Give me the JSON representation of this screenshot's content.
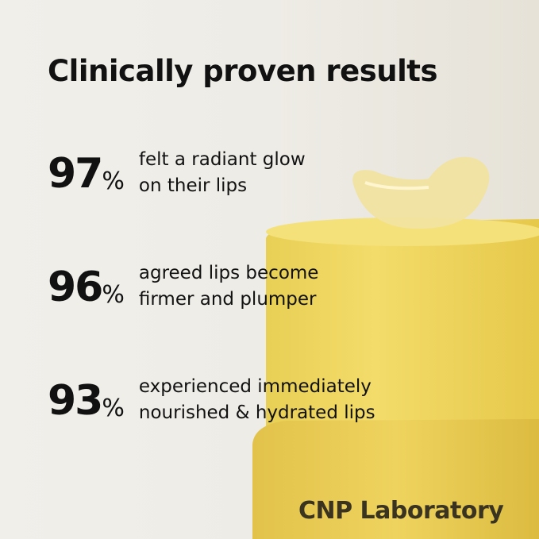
{
  "title": "Clinically proven results",
  "stats": [
    {
      "value": "97",
      "unit": "%",
      "line1": "felt a radiant glow",
      "line2": "on their lips"
    },
    {
      "value": "96",
      "unit": "%",
      "line1": "agreed lips become",
      "line2": "firmer and plumper"
    },
    {
      "value": "93",
      "unit": "%",
      "line1": "experienced immediately",
      "line2": "nourished & hydrated lips"
    }
  ],
  "brand": "CNP Laboratory"
}
